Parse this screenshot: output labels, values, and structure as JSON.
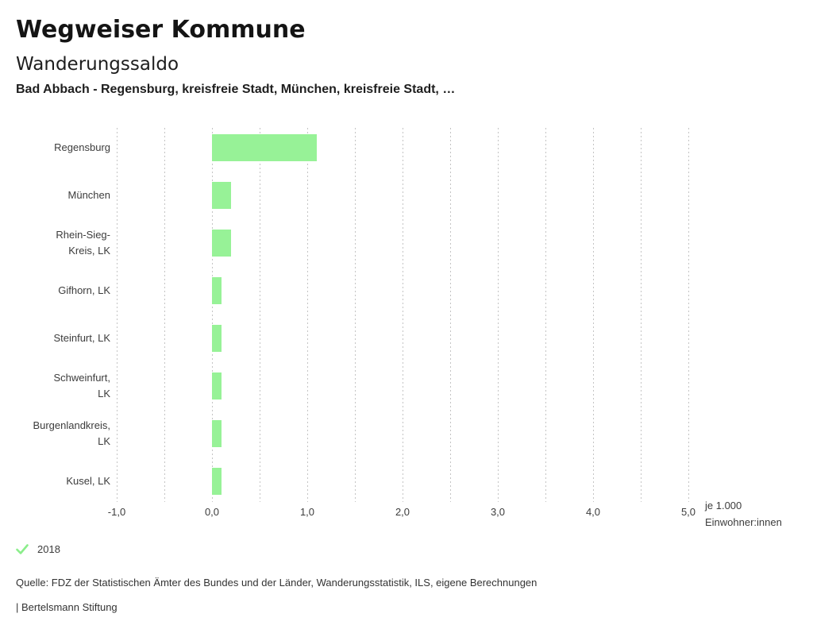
{
  "header": {
    "title": "Wegweiser Kommune",
    "subtitle": "Wanderungssaldo",
    "selection": "Bad Abbach - Regensburg, kreisfreie Stadt, München, kreisfreie Stadt, …"
  },
  "chart_data": {
    "type": "bar",
    "orientation": "horizontal",
    "title": "Wanderungssaldo",
    "categories": [
      "Regensburg",
      "München",
      "Rhein-Sieg-Kreis, LK",
      "Gifhorn, LK",
      "Steinfurt, LK",
      "Schweinfurt, LK",
      "Burgenlandkreis, LK",
      "Kusel, LK"
    ],
    "category_display_lines": [
      [
        "Regensburg"
      ],
      [
        "München"
      ],
      [
        "Rhein-Sieg-",
        "Kreis, LK"
      ],
      [
        "Gifhorn, LK"
      ],
      [
        "Steinfurt, LK"
      ],
      [
        "Schweinfurt,",
        "LK"
      ],
      [
        "Burgenlandkreis,",
        "LK"
      ],
      [
        "Kusel, LK"
      ]
    ],
    "series": [
      {
        "name": "2018",
        "values": [
          1.1,
          0.2,
          0.2,
          0.1,
          0.1,
          0.1,
          0.1,
          0.1
        ]
      }
    ],
    "xlim": [
      -1.0,
      5.0
    ],
    "x_tick_values": [
      -1,
      0,
      1,
      2,
      3,
      4,
      5
    ],
    "x_tick_labels": [
      "-1,0",
      "0,0",
      "1,0",
      "2,0",
      "3,0",
      "4,0",
      "5,0"
    ],
    "gridline_step": 0.5,
    "grid": "vertical-dashed",
    "xlabel": "je 1.000 Einwohner:innen",
    "xlabel_lines": [
      "je 1.000",
      "Einwohner:innen"
    ],
    "legend": {
      "position": "bottom-left",
      "items": [
        {
          "label": "2018",
          "checked": true
        }
      ]
    },
    "bar_color": "#97f297"
  },
  "colors": {
    "bar": "#97f297",
    "legend_check": "#8bee8b",
    "grid": "#c4c4c4",
    "text": "#3c3c3c"
  },
  "footer": {
    "source": "Quelle: FDZ der Statistischen Ämter des Bundes und der Länder, Wanderungsstatistik, ILS, eigene Berechnungen",
    "branding": "| Bertelsmann Stiftung"
  }
}
